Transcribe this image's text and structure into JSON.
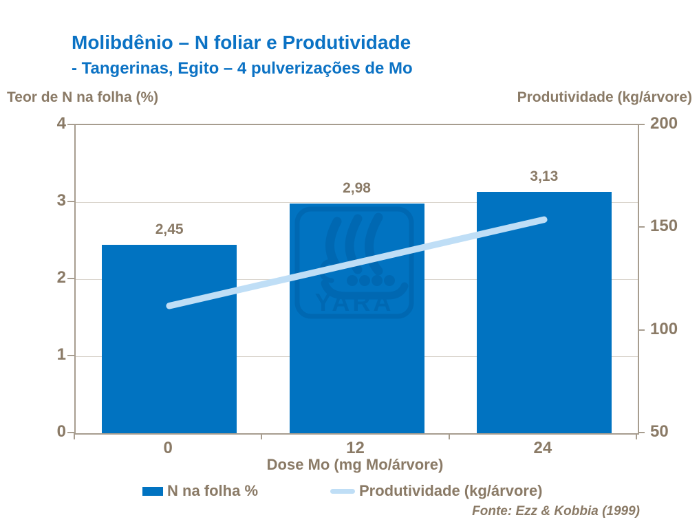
{
  "title": "Molibdênio – N foliar e Produtividade",
  "subtitle": "- Tangerinas, Egito – 4 pulverizações de Mo",
  "left_axis_title": "Teor de N na folha (%)",
  "right_axis_title": "Produtividade (kg/árvore)",
  "x_axis_title": "Dose Mo (mg Mo/árvore)",
  "source": "Fonte: Ezz & Kobbia (1999)",
  "watermark_text": "YARA",
  "colors": {
    "title_blue": "#0b72c4",
    "bar_blue": "#0173c1",
    "line_light_blue": "#bfdef6",
    "text_brown": "#8a7a66",
    "axis_frame": "#a79d8f",
    "gridline": "#dad5cd",
    "watermark_navy": "#003a70"
  },
  "legend": [
    {
      "label": "N na folha %",
      "type": "bar-swatch"
    },
    {
      "label": "Produtividade (kg/árvore)",
      "type": "line-swatch"
    }
  ],
  "chart_data": {
    "type": "bar",
    "categories": [
      "0",
      "12",
      "24"
    ],
    "series": [
      {
        "name": "N na folha %",
        "type": "bar",
        "axis": "left",
        "values": [
          2.45,
          2.98,
          3.13
        ],
        "value_labels": [
          "2,45",
          "2,98",
          "3,13"
        ]
      },
      {
        "name": "Produtividade (kg/árvore)",
        "type": "line",
        "axis": "right",
        "values": [
          112,
          133,
          154
        ]
      }
    ],
    "title": "Molibdênio – N foliar e Produtividade",
    "xlabel": "Dose Mo (mg Mo/árvore)",
    "left_axis": {
      "label": "Teor de N na folha (%)",
      "ticks": [
        0,
        1,
        2,
        3,
        4
      ],
      "range": [
        0,
        4
      ]
    },
    "right_axis": {
      "label": "Produtividade (kg/árvore)",
      "ticks": [
        50,
        100,
        150,
        200
      ],
      "range": [
        50,
        200
      ]
    },
    "grid": "horizontal gridlines at left-axis ticks 1,2,3",
    "legend_position": "bottom"
  }
}
